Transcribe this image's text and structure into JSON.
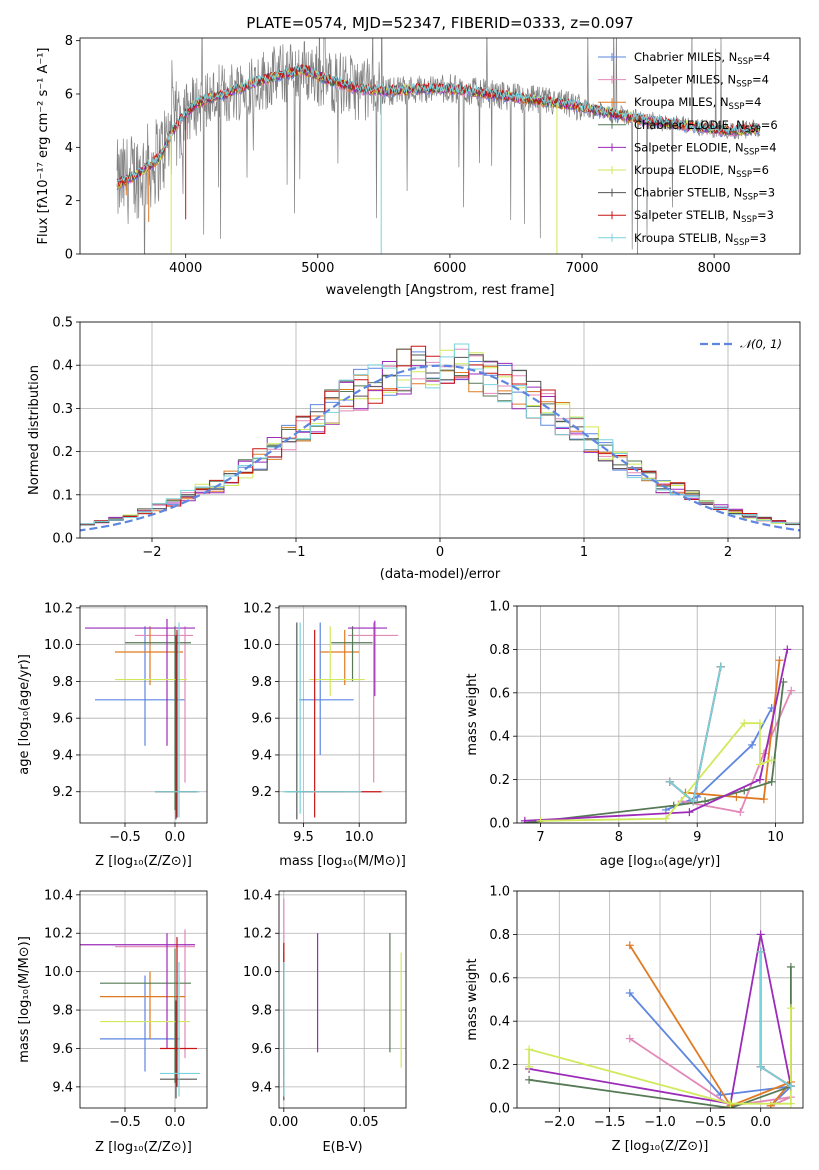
{
  "figure_title": "PLATE=0574, MJD=52347, FIBERID=0333, z=0.097",
  "colors": {
    "CM": "#5e86e0",
    "SM": "#e388b8",
    "KM": "#e07a22",
    "CE": "#557a55",
    "SE": "#9b2bb8",
    "KE": "#d0ea5c",
    "CS": "#555555",
    "SS": "#c81414",
    "KS": "#79d3dd",
    "data": "#808080",
    "normal": "#5e86e0",
    "grid": "#b0b0b0"
  },
  "models": [
    {
      "key": "CM",
      "label": "Chabrier MILES, N",
      "sub": "SSP",
      "suffix": "=4"
    },
    {
      "key": "SM",
      "label": "Salpeter MILES, N",
      "sub": "SSP",
      "suffix": "=4"
    },
    {
      "key": "KM",
      "label": "Kroupa MILES, N",
      "sub": "SSP",
      "suffix": "=4"
    },
    {
      "key": "CE",
      "label": "Chabrier ELODIE, N",
      "sub": "SSP",
      "suffix": "=6"
    },
    {
      "key": "SE",
      "label": "Salpeter ELODIE, N",
      "sub": "SSP",
      "suffix": "=4"
    },
    {
      "key": "KE",
      "label": "Kroupa ELODIE, N",
      "sub": "SSP",
      "suffix": "=6"
    },
    {
      "key": "CS",
      "label": "Chabrier STELIB, N",
      "sub": "SSP",
      "suffix": "=3"
    },
    {
      "key": "SS",
      "label": "Salpeter STELIB, N",
      "sub": "SSP",
      "suffix": "=3"
    },
    {
      "key": "KS",
      "label": "Kroupa STELIB, N",
      "sub": "SSP",
      "suffix": "=3"
    }
  ],
  "chart_data": [
    {
      "id": "spectrum",
      "type": "line",
      "ylabel": "Flux [fλ10⁻¹⁷ erg cm⁻² s⁻¹ A⁻¹]",
      "xlabel": "wavelength [Angstrom, rest frame]",
      "xlim": [
        3200,
        8650
      ],
      "ylim": [
        0,
        8.1
      ],
      "xticks": [
        4000,
        5000,
        6000,
        7000,
        8000
      ],
      "yticks": [
        0,
        2,
        4,
        6,
        8
      ],
      "continuum": {
        "x": [
          3480,
          3600,
          3700,
          3800,
          3900,
          4000,
          4100,
          4300,
          4500,
          4700,
          4900,
          5100,
          5300,
          5500,
          5800,
          6000,
          6300,
          6600,
          6900,
          7200,
          7500,
          7800,
          8100,
          8350
        ],
        "y": [
          2.6,
          2.9,
          3.2,
          3.6,
          4.6,
          5.3,
          5.7,
          6.0,
          6.4,
          6.7,
          6.9,
          6.5,
          6.2,
          6.1,
          6.2,
          6.2,
          6.0,
          5.8,
          5.6,
          5.3,
          5.0,
          4.8,
          4.6,
          4.7
        ]
      }
    },
    {
      "id": "residuals",
      "type": "histogram",
      "xlabel": "(data-model)/error",
      "ylabel": "Normed distribution",
      "xlim": [
        -2.5,
        2.5
      ],
      "ylim": [
        0,
        0.5
      ],
      "xticks": [
        -2,
        -1,
        0,
        1,
        2
      ],
      "yticks": [
        0.0,
        0.1,
        0.2,
        0.3,
        0.4,
        0.5
      ],
      "normal_label": "𝒩(0, 1)"
    },
    {
      "id": "age_vs_Z",
      "type": "errorbar",
      "xlabel": "Z [log₁₀(Z/Z⊙)]",
      "ylabel": "age  [log₁₀(age/yr)]",
      "xlim": [
        -0.95,
        0.32
      ],
      "ylim": [
        9.03,
        10.21
      ],
      "xticks": [
        -0.5,
        0.0
      ],
      "yticks": [
        9.2,
        9.4,
        9.6,
        9.8,
        10.0,
        10.2
      ],
      "points": [
        {
          "m": "CM",
          "x": -0.3,
          "y": 9.7,
          "x0": -0.8,
          "x1": 0.1,
          "y0": 9.45,
          "y1": 10.1
        },
        {
          "m": "SM",
          "x": 0.1,
          "y": 10.05,
          "x0": -0.4,
          "x1": 0.18,
          "y0": 9.25,
          "y1": 10.1
        },
        {
          "m": "KM",
          "x": -0.25,
          "y": 9.96,
          "x0": -0.6,
          "x1": 0.08,
          "y0": 9.78,
          "y1": 10.1
        },
        {
          "m": "CE",
          "x": 0.0,
          "y": 10.01,
          "x0": -0.5,
          "x1": 0.16,
          "y0": 9.1,
          "y1": 10.1
        },
        {
          "m": "SE",
          "x": -0.08,
          "y": 10.09,
          "x0": -0.9,
          "x1": 0.2,
          "y0": 9.45,
          "y1": 10.14
        },
        {
          "m": "KE",
          "x": 0.04,
          "y": 9.81,
          "x0": -0.6,
          "x1": 0.12,
          "y0": 9.2,
          "y1": 10.05
        },
        {
          "m": "CS",
          "x": 0.01,
          "y": 9.2,
          "x0": -0.2,
          "x1": 0.22,
          "y0": 9.05,
          "y1": 10.05
        },
        {
          "m": "SS",
          "x": 0.02,
          "y": 9.2,
          "x0": -0.2,
          "x1": 0.22,
          "y0": 9.06,
          "y1": 10.08
        },
        {
          "m": "KS",
          "x": 0.04,
          "y": 9.2,
          "x0": -0.2,
          "x1": 0.25,
          "y0": 9.06,
          "y1": 10.12
        }
      ]
    },
    {
      "id": "age_vs_mass",
      "type": "errorbar",
      "xlabel": "mass [log₁₀(M/M⊙)]",
      "ylabel": "",
      "xlim": [
        9.28,
        10.42
      ],
      "ylim": [
        9.03,
        10.21
      ],
      "xticks": [
        9.5,
        10.0
      ],
      "yticks": [
        9.2,
        9.4,
        9.6,
        9.8,
        10.0,
        10.2
      ],
      "points": [
        {
          "m": "CM",
          "x": 9.65,
          "y": 9.7,
          "x0": 9.46,
          "x1": 9.95,
          "y0": 9.4,
          "y1": 10.12
        },
        {
          "m": "SM",
          "x": 10.13,
          "y": 10.05,
          "x0": 9.9,
          "x1": 10.35,
          "y0": 9.25,
          "y1": 10.12
        },
        {
          "m": "KM",
          "x": 9.87,
          "y": 9.96,
          "x0": 9.65,
          "x1": 10.0,
          "y0": 9.78,
          "y1": 10.08
        },
        {
          "m": "CE",
          "x": 9.94,
          "y": 10.01,
          "x0": 9.75,
          "x1": 10.12,
          "y0": 9.8,
          "y1": 10.1
        },
        {
          "m": "SE",
          "x": 10.14,
          "y": 10.09,
          "x0": 9.9,
          "x1": 10.25,
          "y0": 9.72,
          "y1": 10.13
        },
        {
          "m": "KE",
          "x": 9.74,
          "y": 9.81,
          "x0": 9.55,
          "x1": 10.05,
          "y0": 9.72,
          "y1": 10.1
        },
        {
          "m": "CS",
          "x": 9.44,
          "y": 9.2,
          "x0": 9.35,
          "x1": 9.85,
          "y0": 9.05,
          "y1": 10.12
        },
        {
          "m": "SS",
          "x": 9.6,
          "y": 9.2,
          "x0": 9.45,
          "x1": 10.2,
          "y0": 9.06,
          "y1": 10.08
        },
        {
          "m": "KS",
          "x": 9.47,
          "y": 9.2,
          "x0": 9.32,
          "x1": 10.02,
          "y0": 9.08,
          "y1": 10.12
        }
      ]
    },
    {
      "id": "mass_weight_vs_age",
      "type": "line",
      "xlabel": "age  [log₁₀(age/yr)]",
      "ylabel": "mass weight",
      "xlim": [
        6.7,
        10.35
      ],
      "ylim": [
        0,
        1.0
      ],
      "xticks": [
        7,
        8,
        9,
        10
      ],
      "yticks": [
        0.0,
        0.2,
        0.4,
        0.6,
        0.8,
        1.0
      ],
      "series": [
        {
          "m": "CM",
          "x": [
            8.6,
            9.0,
            9.7,
            9.95
          ],
          "y": [
            0.06,
            0.12,
            0.36,
            0.53
          ]
        },
        {
          "m": "SM",
          "x": [
            8.8,
            9.55,
            9.85,
            10.2
          ],
          "y": [
            0.1,
            0.05,
            0.32,
            0.61
          ]
        },
        {
          "m": "KM",
          "x": [
            8.85,
            9.5,
            9.85,
            10.05
          ],
          "y": [
            0.14,
            0.12,
            0.11,
            0.75
          ]
        },
        {
          "m": "CE",
          "x": [
            6.8,
            8.7,
            9.1,
            9.6,
            9.95,
            10.1
          ],
          "y": [
            0.0,
            0.08,
            0.1,
            0.15,
            0.19,
            0.65
          ]
        },
        {
          "m": "SE",
          "x": [
            6.8,
            8.9,
            9.8,
            10.15
          ],
          "y": [
            0.01,
            0.05,
            0.2,
            0.8
          ]
        },
        {
          "m": "KE",
          "x": [
            7.0,
            8.6,
            9.6,
            9.8,
            9.8,
            9.95
          ],
          "y": [
            0.01,
            0.02,
            0.46,
            0.46,
            0.27,
            0.29
          ]
        },
        {
          "m": "CS",
          "x": [
            8.65,
            8.95,
            9.3
          ],
          "y": [
            0.19,
            0.1,
            0.72
          ]
        },
        {
          "m": "SS",
          "x": [
            8.65,
            8.95,
            9.3
          ],
          "y": [
            0.19,
            0.1,
            0.72
          ]
        },
        {
          "m": "KS",
          "x": [
            8.65,
            8.95,
            9.3
          ],
          "y": [
            0.19,
            0.1,
            0.72
          ]
        }
      ]
    },
    {
      "id": "mass_vs_Z",
      "type": "errorbar",
      "xlabel": "Z [log₁₀(Z/Z⊙)]",
      "ylabel": "mass [log₁₀(M/M⊙)]",
      "xlim": [
        -0.95,
        0.32
      ],
      "ylim": [
        9.29,
        10.42
      ],
      "xticks": [
        -0.5,
        0.0
      ],
      "yticks": [
        9.4,
        9.6,
        9.8,
        10.0,
        10.2,
        10.4
      ],
      "points": [
        {
          "m": "CM",
          "x": -0.3,
          "y": 9.65,
          "x0": -0.75,
          "x1": 0.05,
          "y0": 9.48,
          "y1": 9.98
        },
        {
          "m": "SM",
          "x": 0.1,
          "y": 10.13,
          "x0": -0.6,
          "x1": 0.2,
          "y0": 9.55,
          "y1": 10.22
        },
        {
          "m": "KM",
          "x": -0.25,
          "y": 9.87,
          "x0": -0.75,
          "x1": 0.1,
          "y0": 9.65,
          "y1": 10.0
        },
        {
          "m": "CE",
          "x": 0.0,
          "y": 9.94,
          "x0": -0.75,
          "x1": 0.16,
          "y0": 9.42,
          "y1": 10.12
        },
        {
          "m": "SE",
          "x": -0.08,
          "y": 10.14,
          "x0": -0.95,
          "x1": 0.2,
          "y0": 9.6,
          "y1": 10.2
        },
        {
          "m": "KE",
          "x": 0.04,
          "y": 9.74,
          "x0": -0.75,
          "x1": 0.15,
          "y0": 9.55,
          "y1": 9.95
        },
        {
          "m": "CS",
          "x": 0.01,
          "y": 9.44,
          "x0": -0.15,
          "x1": 0.22,
          "y0": 9.34,
          "y1": 9.85
        },
        {
          "m": "SS",
          "x": 0.02,
          "y": 9.6,
          "x0": -0.15,
          "x1": 0.22,
          "y0": 9.4,
          "y1": 10.18
        },
        {
          "m": "KS",
          "x": 0.04,
          "y": 9.47,
          "x0": -0.15,
          "x1": 0.25,
          "y0": 9.35,
          "y1": 10.05
        }
      ]
    },
    {
      "id": "mass_vs_EBV",
      "type": "errorbar",
      "xlabel": "E(B-V)",
      "ylabel": "",
      "xlim": [
        -0.003,
        0.076
      ],
      "ylim": [
        9.29,
        10.42
      ],
      "xticks": [
        0.0,
        0.05
      ],
      "yticks": [
        9.4,
        9.6,
        9.8,
        10.0,
        10.2,
        10.4
      ],
      "points": [
        {
          "m": "CM",
          "x": 0.0,
          "y": 9.65,
          "y0": 9.45,
          "y1": 9.9
        },
        {
          "m": "SM",
          "x": 0.0,
          "y": 10.13,
          "y0": 9.9,
          "y1": 10.38
        },
        {
          "m": "KM",
          "x": 0.0,
          "y": 9.87,
          "y0": 9.7,
          "y1": 10.1
        },
        {
          "m": "CE",
          "x": 0.066,
          "y": 9.94,
          "y0": 9.58,
          "y1": 10.2
        },
        {
          "m": "SE",
          "x": 0.021,
          "y": 10.14,
          "y0": 9.58,
          "y1": 10.2
        },
        {
          "m": "KE",
          "x": 0.073,
          "y": 9.74,
          "y0": 9.5,
          "y1": 10.1
        },
        {
          "m": "CS",
          "x": 0.0,
          "y": 9.44,
          "y0": 9.33,
          "y1": 9.8
        },
        {
          "m": "SS",
          "x": 0.0,
          "y": 9.6,
          "y0": 9.4,
          "y1": 10.15
        },
        {
          "m": "KS",
          "x": 0.0,
          "y": 9.47,
          "y0": 9.35,
          "y1": 10.05
        }
      ]
    },
    {
      "id": "mass_weight_vs_Z",
      "type": "line",
      "xlabel": "Z [log₁₀(Z/Z⊙)]",
      "ylabel": "mass weight",
      "xlim": [
        -2.42,
        0.42
      ],
      "ylim": [
        0,
        1.0
      ],
      "xticks": [
        -2.0,
        -1.5,
        -1.0,
        -0.5,
        0.0
      ],
      "yticks": [
        0.0,
        0.2,
        0.4,
        0.6,
        0.8,
        1.0
      ],
      "series": [
        {
          "m": "CM",
          "x": [
            -1.3,
            -0.4,
            0.3,
            0.1
          ],
          "y": [
            0.53,
            0.06,
            0.1,
            0.01
          ]
        },
        {
          "m": "SM",
          "x": [
            -1.3,
            -0.3,
            0.3,
            0.1
          ],
          "y": [
            0.32,
            0.01,
            0.05,
            0.01
          ]
        },
        {
          "m": "KM",
          "x": [
            -1.3,
            -0.3,
            0.3,
            0.1
          ],
          "y": [
            0.75,
            0.01,
            0.12,
            0.01
          ]
        },
        {
          "m": "CE",
          "x": [
            -2.3,
            -0.3,
            0.3,
            0.3
          ],
          "y": [
            0.13,
            0.0,
            0.1,
            0.65
          ]
        },
        {
          "m": "SE",
          "x": [
            -2.3,
            -0.3,
            0.0,
            0.3
          ],
          "y": [
            0.18,
            0.02,
            0.8,
            0.1
          ]
        },
        {
          "m": "KE",
          "x": [
            -2.3,
            -2.3,
            -0.3,
            0.3,
            0.3
          ],
          "y": [
            0.19,
            0.27,
            0.02,
            0.02,
            0.46
          ]
        },
        {
          "m": "CS",
          "x": [
            0.0,
            0.0,
            0.3
          ],
          "y": [
            0.72,
            0.19,
            0.1
          ]
        },
        {
          "m": "SS",
          "x": [
            0.0,
            0.0,
            0.3
          ],
          "y": [
            0.72,
            0.19,
            0.1
          ]
        },
        {
          "m": "KS",
          "x": [
            0.0,
            0.0,
            0.3
          ],
          "y": [
            0.72,
            0.19,
            0.1
          ]
        }
      ]
    }
  ]
}
